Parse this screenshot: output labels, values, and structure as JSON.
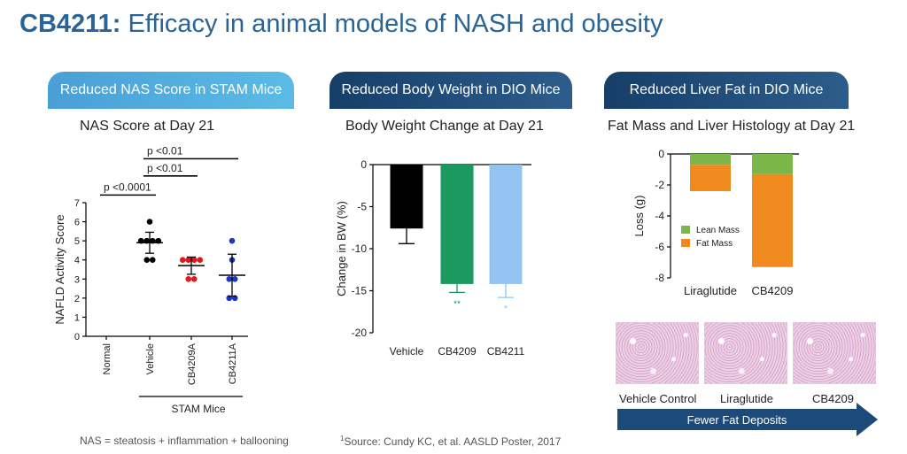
{
  "title": {
    "bold": "CB4211:",
    "rest": " Efficacy in animal models of NASH and obesity"
  },
  "panels": {
    "p1": "Reduced NAS Score in STAM Mice",
    "p2": "Reduced Body Weight in DIO Mice",
    "p3": "Reduced Liver Fat in DIO Mice"
  },
  "histology": {
    "labels": [
      "Vehicle Control",
      "Liraglutide",
      "CB4209"
    ],
    "arrow_text": "Fewer Fat Deposits"
  },
  "footnotes": {
    "left": "NAS = steatosis + inflammation + ballooning",
    "source_sup": "1",
    "source": "Source: Cundy KC, et al. AASLD Poster, 2017"
  },
  "colors": {
    "title": "#2a6496",
    "vehicle": "#000000",
    "cb4209_dot": "#e8141b",
    "cb4211_dot": "#1a36c8",
    "cb4209_bar": "#1a9a5e",
    "cb4211_bar": "#94c3f1",
    "lean": "#7ab648",
    "fat": "#f0891e"
  },
  "chart_data": [
    {
      "type": "scatter",
      "title": "NAS Score at Day 21",
      "ylabel": "NAFLD Activity Score",
      "ylim": [
        0,
        7
      ],
      "yticks": [
        0,
        1,
        2,
        3,
        4,
        5,
        6,
        7
      ],
      "categories": [
        "Normal",
        "Vehicle",
        "CB4209A",
        "CB4211A"
      ],
      "group_label": "STAM Mice",
      "series": [
        {
          "category": "Vehicle",
          "points": [
            6,
            5,
            5,
            5,
            5,
            4,
            4
          ],
          "mean": 4.9,
          "sd": 0.55,
          "color": "#000000"
        },
        {
          "category": "CB4209A",
          "points": [
            4,
            4,
            4,
            4,
            3,
            3
          ],
          "mean": 3.7,
          "sd": 0.45,
          "color": "#e8141b"
        },
        {
          "category": "CB4211A",
          "points": [
            5,
            4,
            3,
            3,
            2,
            2
          ],
          "mean": 3.2,
          "sd": 1.1,
          "color": "#1a36c8"
        }
      ],
      "annotations": [
        {
          "text": "p <0.0001",
          "from": "Normal",
          "to": "Vehicle",
          "y": 7.4
        },
        {
          "text": "p <0.01",
          "from": "Vehicle",
          "to": "CB4209A",
          "y": 8.4
        },
        {
          "text": "p <0.01",
          "from": "Vehicle",
          "to": "CB4211A",
          "y": 9.3
        }
      ]
    },
    {
      "type": "bar",
      "title": "Body Weight Change at Day 21",
      "ylabel": "Change in BW (%)",
      "ylim": [
        -20,
        0
      ],
      "yticks": [
        0,
        -5,
        -10,
        -15,
        -20
      ],
      "categories": [
        "Vehicle",
        "CB4209",
        "CB4211"
      ],
      "values": [
        -7.6,
        -14.2,
        -14.2
      ],
      "errors": [
        1.8,
        1.0,
        1.6
      ],
      "significance": [
        "",
        "**",
        "*"
      ],
      "colors": [
        "#000000",
        "#1a9a5e",
        "#94c3f1"
      ]
    },
    {
      "type": "bar",
      "title": "Fat Mass and Liver Histology at Day 21",
      "ylabel": "Loss (g)",
      "ylim": [
        -8,
        0
      ],
      "yticks": [
        0,
        -2,
        -4,
        -6,
        -8
      ],
      "categories": [
        "Liraglutide",
        "CB4209"
      ],
      "series": [
        {
          "name": "Lean Mass",
          "values": [
            -0.7,
            -1.3
          ],
          "color": "#7ab648"
        },
        {
          "name": "Fat Mass",
          "values": [
            -1.7,
            -6.0
          ],
          "color": "#f0891e"
        }
      ],
      "legend": "inside-lower-left"
    }
  ]
}
